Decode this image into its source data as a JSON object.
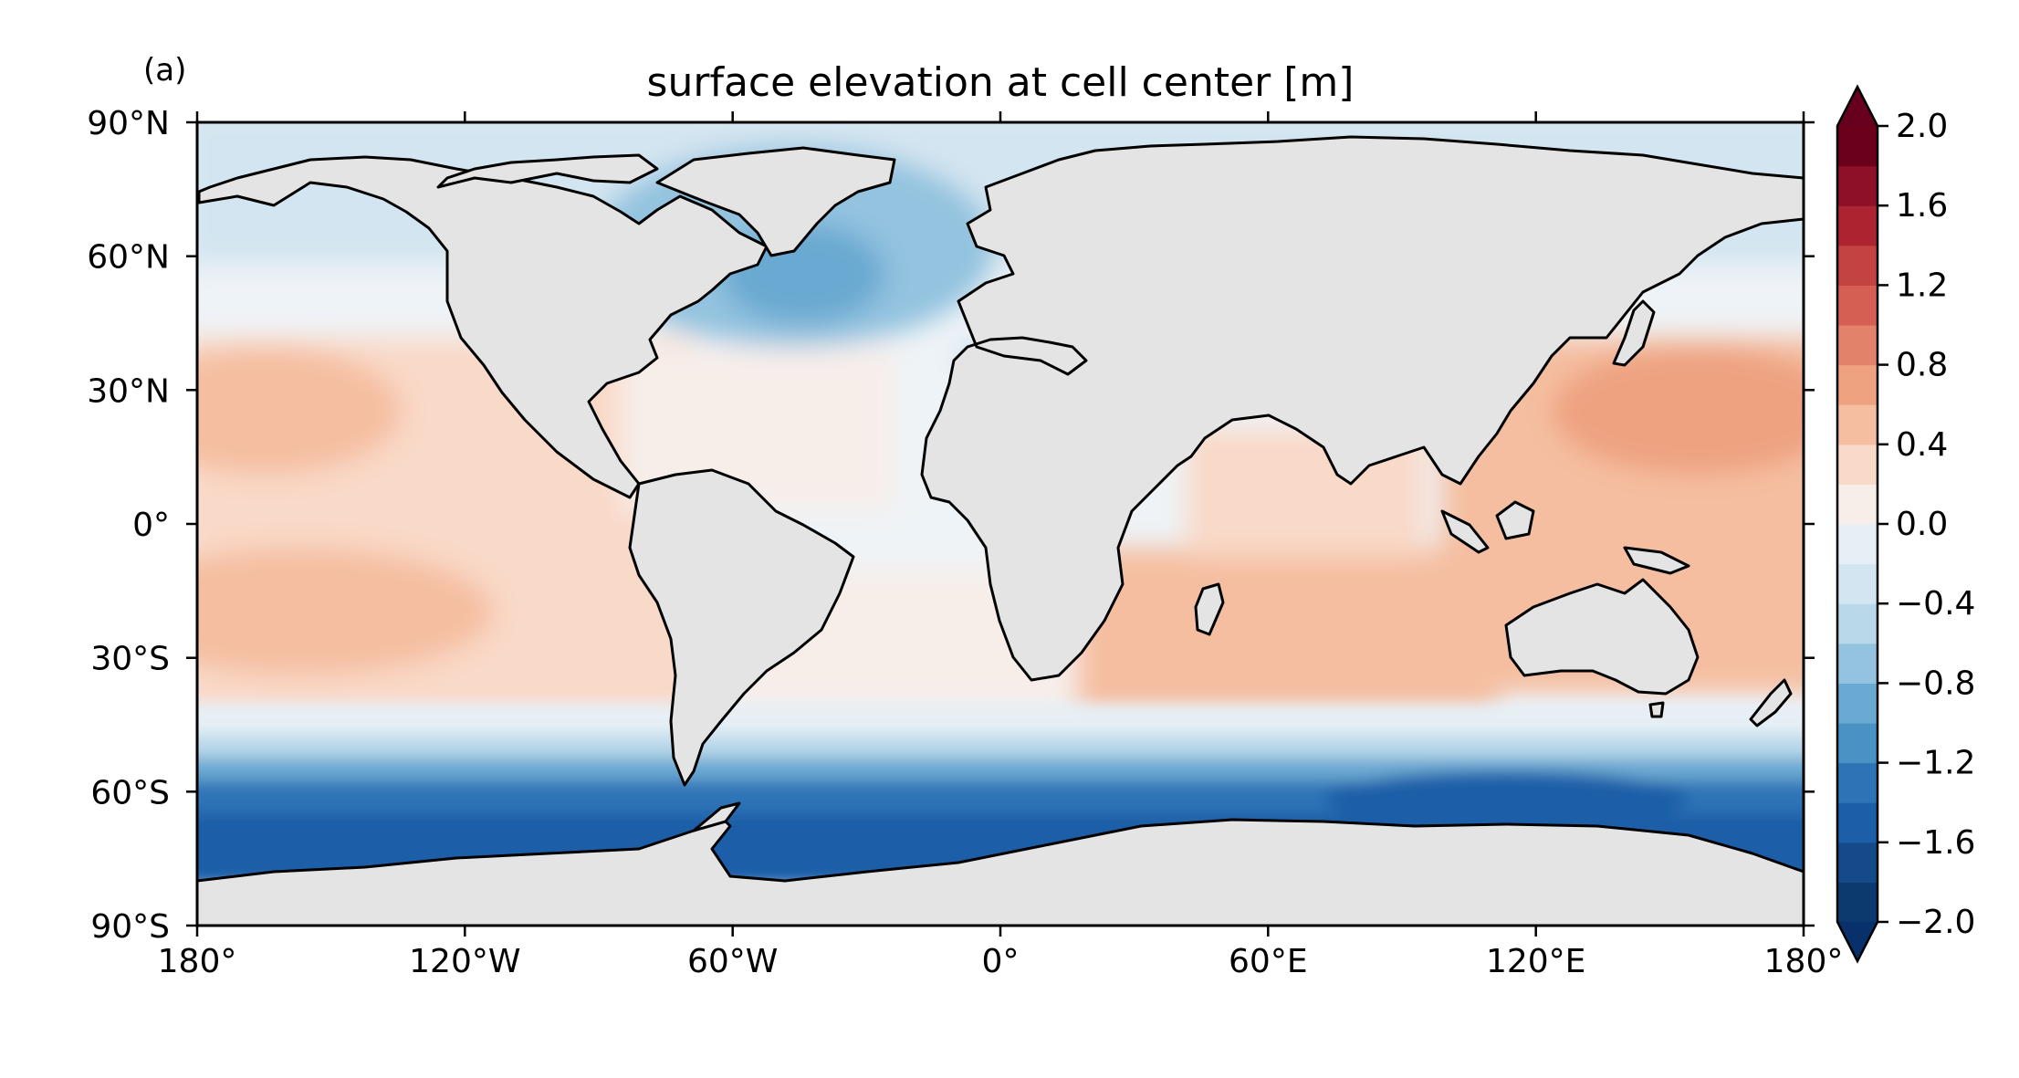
{
  "panel_label": "(a)",
  "title": "surface elevation at cell center [m]",
  "x_ticks": [
    "180°",
    "120°W",
    "60°W",
    "0°",
    "60°E",
    "120°E",
    "180°"
  ],
  "y_ticks": [
    "90°N",
    "60°N",
    "30°N",
    "0°",
    "30°S",
    "60°S",
    "90°S"
  ],
  "colorbar": {
    "ticks": [
      "2.0",
      "1.6",
      "1.2",
      "0.8",
      "0.4",
      "0.0",
      "−0.4",
      "−0.8",
      "−1.2",
      "−1.6",
      "−2.0"
    ],
    "levels": [
      -2.0,
      -1.8,
      -1.6,
      -1.4,
      -1.2,
      -1.0,
      -0.8,
      -0.6,
      -0.4,
      -0.2,
      0.0,
      0.2,
      0.4,
      0.6,
      0.8,
      1.0,
      1.2,
      1.4,
      1.6,
      1.8,
      2.0
    ],
    "extend": "both",
    "colors": [
      "#0d3a6e",
      "#144a87",
      "#1c5fa8",
      "#2d74b7",
      "#4892c4",
      "#6aa9d1",
      "#93c3df",
      "#b9d8ea",
      "#d3e5f0",
      "#e6eff5",
      "#f7eeea",
      "#f9d9c8",
      "#f5bea0",
      "#eea280",
      "#e3826a",
      "#d55f52",
      "#c34341",
      "#ad2431",
      "#8e0f28",
      "#6a001a"
    ],
    "under_color": "#08306b",
    "over_color": "#67001f"
  },
  "map": {
    "projection": "PlateCarree",
    "lon_range": [
      -180,
      180
    ],
    "lat_range": [
      -90,
      90
    ],
    "land_color": "#e4e4e4",
    "coastline_color": "#000000"
  }
}
